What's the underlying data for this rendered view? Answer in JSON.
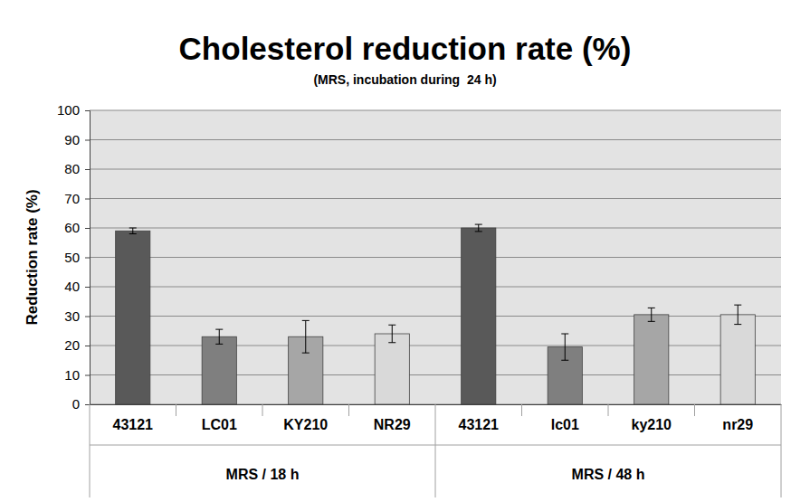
{
  "chart_data": {
    "type": "bar",
    "title": "Cholesterol reduction rate (%)",
    "subtitle": "(MRS, incubation during  24 h)",
    "y_label": "Reduction rate (%)",
    "categories": [
      "43121",
      "LC01",
      "KY210",
      "NR29",
      "43121",
      "lc01",
      "ky210",
      "nr29"
    ],
    "group_labels": [
      "MRS / 18 h",
      "MRS / 48 h"
    ],
    "values": [
      59,
      23,
      23,
      24,
      60,
      19.5,
      30.5,
      30.5
    ],
    "errors": [
      1,
      2.5,
      5.5,
      3,
      1.2,
      4.5,
      2.3,
      3.3
    ],
    "colors": [
      "#595959",
      "#7f7f7f",
      "#a6a6a6",
      "#d9d9d9",
      "#595959",
      "#7f7f7f",
      "#a6a6a6",
      "#d9d9d9"
    ],
    "ylim": [
      0,
      100
    ],
    "yticks": [
      0,
      10,
      20,
      30,
      40,
      50,
      60,
      70,
      80,
      90,
      100
    ],
    "grid": true
  }
}
